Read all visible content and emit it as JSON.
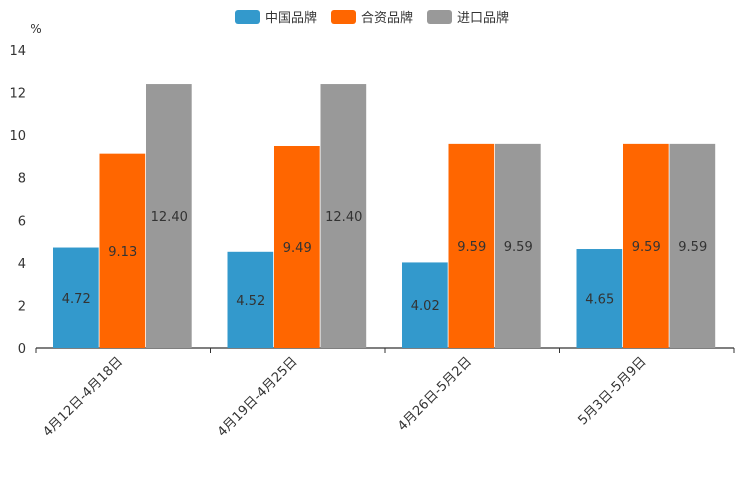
{
  "chart_data": {
    "type": "bar",
    "unit_label": "%",
    "categories": [
      "4月12日-4月18日",
      "4月19日-4月25日",
      "4月26日-5月2日",
      "5月3日-5月9日"
    ],
    "series": [
      {
        "name": "中国品牌",
        "color": "#3399cc",
        "values": [
          4.72,
          4.52,
          4.02,
          4.65
        ],
        "labels": [
          "4.72",
          "4.52",
          "4.02",
          "4.65"
        ]
      },
      {
        "name": "合资品牌",
        "color": "#ff6600",
        "values": [
          9.13,
          9.49,
          9.59,
          9.59
        ],
        "labels": [
          "9.13",
          "9.49",
          "9.59",
          "9.59"
        ]
      },
      {
        "name": "进口品牌",
        "color": "#999999",
        "values": [
          12.4,
          12.4,
          9.59,
          9.59
        ],
        "labels": [
          "12.40",
          "12.40",
          "9.59",
          "9.59"
        ]
      }
    ],
    "ylim": [
      0,
      14
    ],
    "yticks": [
      "0",
      "2",
      "4",
      "6",
      "8",
      "10",
      "12",
      "14"
    ],
    "legend_position": "top-center",
    "grid": false
  }
}
